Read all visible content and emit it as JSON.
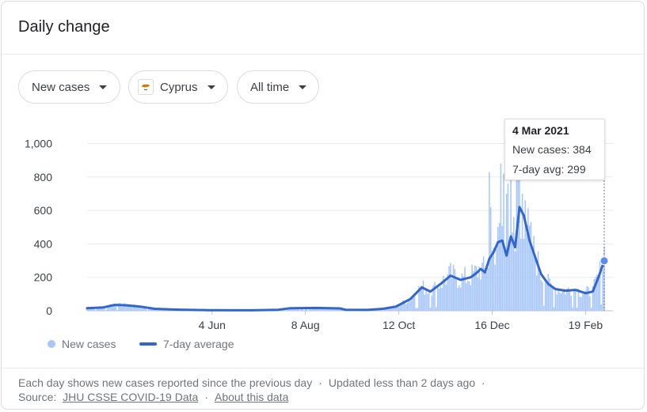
{
  "card": {
    "title": "Daily change"
  },
  "filters": {
    "metric": "New cases",
    "location": "Cyprus",
    "range": "All time"
  },
  "tooltip": {
    "date": "4 Mar 2021",
    "new_cases_label": "New cases: 384",
    "avg_label": "7-day avg: 299"
  },
  "legend": {
    "bars": "New cases",
    "line": "7-day average"
  },
  "footer": {
    "line1_a": "Each day shows new cases reported since the previous day",
    "line1_sep": "·",
    "line1_b": "Updated less than 2 days ago",
    "line1_trail": "·",
    "source_label": "Source:",
    "source_link": "JHU CSSE COVID-19 Data",
    "sep": "·",
    "about_link": "About this data"
  },
  "colors": {
    "bar": "#a8c7fa",
    "line": "#3366cc",
    "grid": "#ebebeb"
  },
  "chart_data": {
    "type": "bar",
    "overlay": "line",
    "x_ticks": [
      "4 Jun",
      "8 Aug",
      "12 Oct",
      "16 Dec",
      "19 Feb"
    ],
    "y_ticks": [
      "0",
      "200",
      "400",
      "600",
      "800",
      "1,000"
    ],
    "ylim": [
      0,
      1000
    ],
    "grid": true,
    "legend_position": "bottom-left",
    "series": [
      {
        "name": "New cases",
        "type": "bar"
      },
      {
        "name": "7-day average",
        "type": "line"
      }
    ],
    "avg_points": [
      [
        "2020-03-09",
        15
      ],
      [
        "2020-03-20",
        20
      ],
      [
        "2020-03-28",
        35
      ],
      [
        "2020-04-05",
        33
      ],
      [
        "2020-04-15",
        25
      ],
      [
        "2020-04-25",
        12
      ],
      [
        "2020-05-10",
        7
      ],
      [
        "2020-06-01",
        4
      ],
      [
        "2020-07-01",
        3
      ],
      [
        "2020-07-20",
        6
      ],
      [
        "2020-07-28",
        15
      ],
      [
        "2020-08-15",
        17
      ],
      [
        "2020-09-01",
        14
      ],
      [
        "2020-09-05",
        6
      ],
      [
        "2020-09-20",
        5
      ],
      [
        "2020-10-01",
        12
      ],
      [
        "2020-10-10",
        25
      ],
      [
        "2020-10-20",
        70
      ],
      [
        "2020-10-28",
        140
      ],
      [
        "2020-11-03",
        115
      ],
      [
        "2020-11-10",
        160
      ],
      [
        "2020-11-17",
        210
      ],
      [
        "2020-11-24",
        185
      ],
      [
        "2020-12-01",
        200
      ],
      [
        "2020-12-05",
        225
      ],
      [
        "2020-12-08",
        250
      ],
      [
        "2020-12-11",
        230
      ],
      [
        "2020-12-14",
        310
      ],
      [
        "2020-12-17",
        350
      ],
      [
        "2020-12-20",
        410
      ],
      [
        "2020-12-23",
        420
      ],
      [
        "2020-12-26",
        330
      ],
      [
        "2020-12-29",
        445
      ],
      [
        "2021-01-01",
        380
      ],
      [
        "2021-01-04",
        620
      ],
      [
        "2021-01-07",
        570
      ],
      [
        "2021-01-11",
        420
      ],
      [
        "2021-01-15",
        320
      ],
      [
        "2021-01-19",
        220
      ],
      [
        "2021-01-24",
        160
      ],
      [
        "2021-01-29",
        130
      ],
      [
        "2021-02-05",
        120
      ],
      [
        "2021-02-12",
        125
      ],
      [
        "2021-02-19",
        105
      ],
      [
        "2021-02-24",
        115
      ],
      [
        "2021-02-28",
        200
      ],
      [
        "2021-03-04",
        299
      ]
    ],
    "bar_daily_values_approx": [
      [
        "2020-03-09",
        2
      ],
      [
        "2020-03-28",
        40
      ],
      [
        "2020-04-15",
        25
      ],
      [
        "2020-06-01",
        4
      ],
      [
        "2020-08-15",
        17
      ],
      [
        "2020-10-20",
        80
      ],
      [
        "2020-11-10",
        200
      ],
      [
        "2020-12-08",
        260
      ],
      [
        "2020-12-20",
        830
      ],
      [
        "2020-12-30",
        880
      ],
      [
        "2021-01-04",
        800
      ],
      [
        "2021-01-20",
        200
      ],
      [
        "2021-02-19",
        110
      ],
      [
        "2021-03-04",
        384
      ]
    ]
  }
}
